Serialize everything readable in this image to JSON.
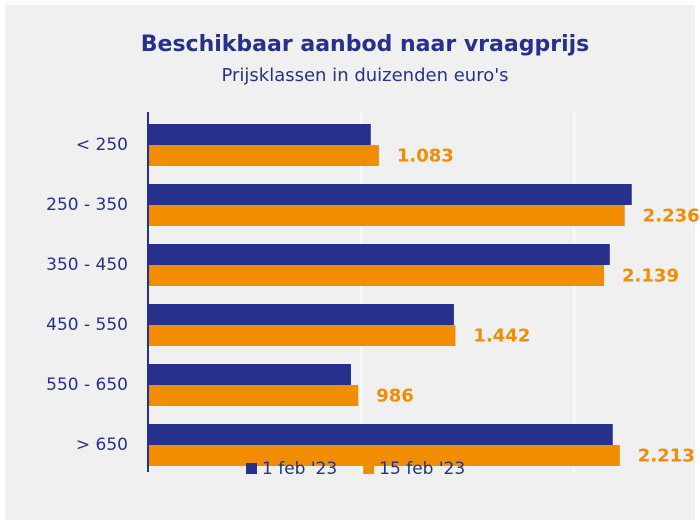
{
  "chart_data": {
    "type": "bar",
    "orientation": "horizontal",
    "title": "Beschikbaar aanbod naar vraagprijs",
    "subtitle": "Prijsklassen in duizenden euro's",
    "categories": [
      "< 250",
      "250 - 350",
      "350 - 450",
      "450 - 550",
      "550 - 650",
      "> 650"
    ],
    "series": [
      {
        "name": "1 feb '23",
        "color": "#27318b",
        "values": [
          1045,
          2269,
          2166,
          1435,
          952,
          2180
        ]
      },
      {
        "name": "15 feb '23",
        "color": "#f28c00",
        "values": [
          1083,
          2236,
          2139,
          1442,
          986,
          2213
        ],
        "value_labels": [
          "1.083",
          "2.236",
          "2.139",
          "1.442",
          "986",
          "2.213"
        ]
      }
    ],
    "xlim": [
      0,
      2500
    ],
    "xticks": [
      0,
      1000,
      2000
    ],
    "grid": true,
    "legend": "bottom"
  }
}
